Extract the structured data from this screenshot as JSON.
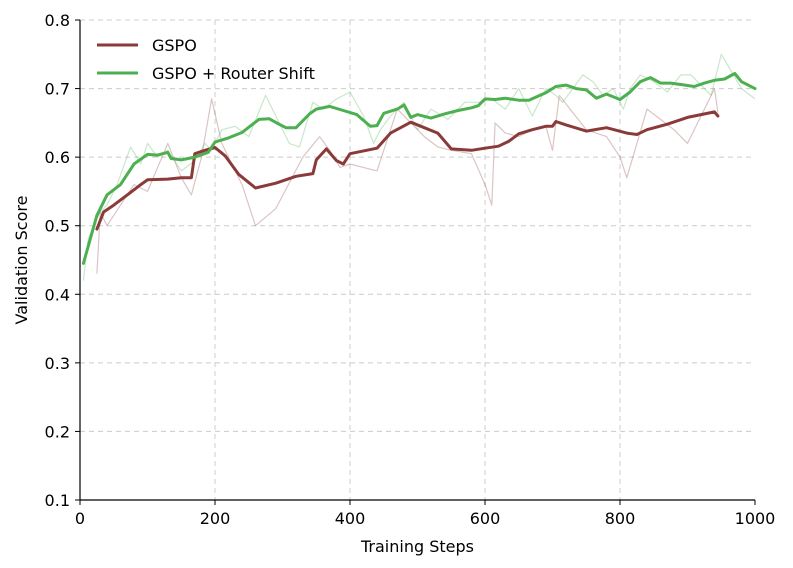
{
  "chart_data": {
    "type": "line",
    "xlabel": "Training Steps",
    "ylabel": "Validation Score",
    "xlim": [
      0,
      1000
    ],
    "ylim": [
      0.1,
      0.8
    ],
    "x_ticks": [
      0,
      200,
      400,
      600,
      800,
      1000
    ],
    "y_ticks": [
      0.1,
      0.2,
      0.3,
      0.4,
      0.5,
      0.6,
      0.7,
      0.8
    ],
    "grid": true,
    "legend_position": "top-left",
    "series": [
      {
        "name": "GSPO",
        "color": "#8b3a3a",
        "raw": {
          "x": [
            25,
            30,
            40,
            60,
            80,
            100,
            130,
            150,
            165,
            180,
            195,
            210,
            240,
            260,
            290,
            330,
            355,
            370,
            385,
            400,
            440,
            470,
            490,
            510,
            530,
            550,
            580,
            600,
            610,
            615,
            630,
            650,
            670,
            690,
            700,
            710,
            730,
            750,
            780,
            800,
            810,
            825,
            840,
            860,
            880,
            900,
            920,
            940,
            945
          ],
          "y": [
            0.43,
            0.52,
            0.5,
            0.53,
            0.56,
            0.55,
            0.62,
            0.57,
            0.545,
            0.6,
            0.685,
            0.62,
            0.56,
            0.5,
            0.525,
            0.6,
            0.63,
            0.61,
            0.585,
            0.59,
            0.58,
            0.67,
            0.65,
            0.63,
            0.615,
            0.61,
            0.605,
            0.56,
            0.53,
            0.65,
            0.635,
            0.63,
            0.64,
            0.645,
            0.61,
            0.69,
            0.665,
            0.64,
            0.63,
            0.6,
            0.57,
            0.62,
            0.67,
            0.655,
            0.64,
            0.62,
            0.66,
            0.7,
            0.665
          ]
        },
        "smoothed": {
          "x": [
            25,
            35,
            50,
            70,
            90,
            100,
            130,
            150,
            165,
            170,
            185,
            200,
            215,
            235,
            260,
            290,
            320,
            345,
            350,
            365,
            380,
            390,
            400,
            440,
            460,
            490,
            510,
            530,
            550,
            580,
            600,
            620,
            635,
            650,
            670,
            690,
            700,
            705,
            720,
            750,
            780,
            810,
            825,
            840,
            870,
            900,
            940,
            945
          ],
          "y": [
            0.495,
            0.52,
            0.53,
            0.545,
            0.56,
            0.567,
            0.568,
            0.57,
            0.57,
            0.605,
            0.61,
            0.614,
            0.602,
            0.575,
            0.555,
            0.562,
            0.572,
            0.576,
            0.596,
            0.612,
            0.595,
            0.59,
            0.605,
            0.613,
            0.635,
            0.651,
            0.643,
            0.635,
            0.612,
            0.61,
            0.613,
            0.616,
            0.623,
            0.634,
            0.64,
            0.645,
            0.645,
            0.652,
            0.647,
            0.638,
            0.643,
            0.635,
            0.633,
            0.64,
            0.648,
            0.658,
            0.666,
            0.66
          ]
        }
      },
      {
        "name": "GSPO + Router Shift",
        "color": "#4caf50",
        "raw": {
          "x": [
            5,
            12,
            20,
            30,
            40,
            55,
            75,
            90,
            100,
            115,
            130,
            150,
            170,
            185,
            195,
            210,
            230,
            250,
            275,
            290,
            310,
            325,
            345,
            360,
            380,
            400,
            420,
            435,
            445,
            460,
            480,
            500,
            520,
            545,
            570,
            590,
            610,
            630,
            650,
            670,
            690,
            705,
            715,
            730,
            745,
            760,
            775,
            790,
            805,
            815,
            830,
            850,
            870,
            890,
            905,
            920,
            935,
            950,
            965,
            980,
            1000
          ],
          "y": [
            0.42,
            0.48,
            0.5,
            0.52,
            0.53,
            0.56,
            0.615,
            0.59,
            0.62,
            0.6,
            0.61,
            0.58,
            0.595,
            0.62,
            0.61,
            0.64,
            0.645,
            0.63,
            0.69,
            0.66,
            0.62,
            0.615,
            0.68,
            0.67,
            0.685,
            0.695,
            0.66,
            0.62,
            0.64,
            0.66,
            0.68,
            0.64,
            0.67,
            0.655,
            0.68,
            0.68,
            0.685,
            0.67,
            0.7,
            0.66,
            0.7,
            0.69,
            0.68,
            0.7,
            0.72,
            0.71,
            0.69,
            0.7,
            0.67,
            0.7,
            0.72,
            0.71,
            0.695,
            0.72,
            0.72,
            0.705,
            0.69,
            0.75,
            0.725,
            0.7,
            0.685
          ]
        },
        "smoothed": {
          "x": [
            5,
            25,
            40,
            60,
            80,
            100,
            115,
            130,
            135,
            150,
            170,
            190,
            200,
            220,
            240,
            265,
            280,
            295,
            305,
            320,
            340,
            350,
            370,
            390,
            410,
            430,
            440,
            450,
            470,
            480,
            490,
            500,
            520,
            540,
            560,
            580,
            590,
            600,
            615,
            630,
            650,
            665,
            690,
            705,
            720,
            735,
            750,
            765,
            780,
            800,
            815,
            830,
            845,
            860,
            875,
            890,
            910,
            925,
            940,
            955,
            970,
            980,
            1000
          ],
          "y": [
            0.445,
            0.515,
            0.545,
            0.56,
            0.59,
            0.604,
            0.603,
            0.607,
            0.598,
            0.596,
            0.6,
            0.607,
            0.622,
            0.628,
            0.636,
            0.655,
            0.656,
            0.648,
            0.643,
            0.643,
            0.663,
            0.67,
            0.674,
            0.668,
            0.662,
            0.645,
            0.646,
            0.664,
            0.67,
            0.676,
            0.658,
            0.662,
            0.657,
            0.663,
            0.668,
            0.672,
            0.675,
            0.685,
            0.684,
            0.686,
            0.683,
            0.683,
            0.694,
            0.703,
            0.705,
            0.7,
            0.698,
            0.686,
            0.692,
            0.684,
            0.695,
            0.71,
            0.716,
            0.708,
            0.708,
            0.706,
            0.703,
            0.708,
            0.712,
            0.714,
            0.722,
            0.71,
            0.7
          ]
        }
      }
    ]
  }
}
